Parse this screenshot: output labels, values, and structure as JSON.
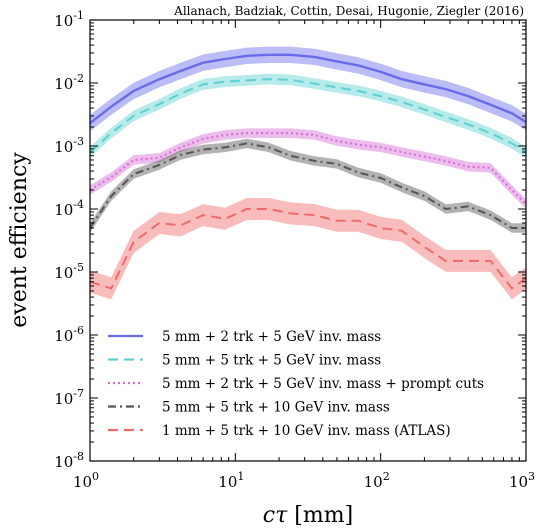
{
  "chart_data": {
    "type": "line",
    "credit": "Allanach, Badziak, Cottin, Desai, Hugonie, Ziegler (2016)",
    "xlabel": "cτ [mm]",
    "ylabel": "event efficiency",
    "xscale": "log",
    "yscale": "log",
    "xlim": [
      1,
      1000
    ],
    "ylim": [
      1e-08,
      0.1
    ],
    "x_tick_labels": [
      "10^0",
      "10^1",
      "10^2",
      "10^3"
    ],
    "y_tick_labels": [
      "10^-8",
      "10^-7",
      "10^-6",
      "10^-5",
      "10^-4",
      "10^-3",
      "10^-2",
      "10^-1"
    ],
    "grid": false,
    "legend_position": "lower-left",
    "x": [
      1,
      1.4,
      2,
      3,
      4.2,
      6,
      8.5,
      12,
      17,
      24,
      35,
      50,
      70,
      100,
      140,
      200,
      280,
      400,
      570,
      800,
      1000
    ],
    "series": [
      {
        "name": "5 mm + 2 trk + 5 GeV inv. mass",
        "color": "#6b6bea",
        "style": "solid",
        "values": [
          0.0023,
          0.0042,
          0.0075,
          0.0115,
          0.0155,
          0.021,
          0.024,
          0.027,
          0.028,
          0.028,
          0.026,
          0.022,
          0.019,
          0.015,
          0.0115,
          0.0095,
          0.008,
          0.0062,
          0.0045,
          0.0033,
          0.0024
        ],
        "band": [
          0.0023,
          0.0042,
          0.0075,
          0.0115,
          0.0155,
          0.021,
          0.024,
          0.027,
          0.028,
          0.028,
          0.026,
          0.022,
          0.019,
          0.015,
          0.0115,
          0.0095,
          0.008,
          0.0062,
          0.0045,
          0.0033,
          0.0024
        ]
      },
      {
        "name": "5 mm + 5 trk + 5 GeV inv. mass",
        "color": "#5fd0d0",
        "style": "dashed",
        "values": [
          0.0008,
          0.0016,
          0.003,
          0.0046,
          0.0068,
          0.0095,
          0.0105,
          0.011,
          0.0115,
          0.0112,
          0.0098,
          0.0085,
          0.0075,
          0.0062,
          0.005,
          0.0038,
          0.0029,
          0.0022,
          0.0016,
          0.0011,
          0.0008
        ],
        "band": [
          0.0008,
          0.0016,
          0.003,
          0.0046,
          0.0068,
          0.0095,
          0.0105,
          0.011,
          0.0115,
          0.0112,
          0.0098,
          0.0085,
          0.0075,
          0.0062,
          0.005,
          0.0038,
          0.0029,
          0.0022,
          0.0016,
          0.0011,
          0.0008
        ]
      },
      {
        "name": "5 mm + 2 trk + 5 GeV inv. mass + prompt cuts",
        "color": "#d46ad4",
        "style": "dotted",
        "values": [
          0.0002,
          0.00032,
          0.0006,
          0.00065,
          0.00095,
          0.0013,
          0.0015,
          0.0016,
          0.0016,
          0.0016,
          0.0015,
          0.0012,
          0.00105,
          0.00095,
          0.0008,
          0.00068,
          0.00058,
          0.00047,
          0.00045,
          0.0002,
          0.00012
        ],
        "band": [
          0.0002,
          0.00032,
          0.0006,
          0.00065,
          0.00095,
          0.0013,
          0.0015,
          0.0016,
          0.0016,
          0.0016,
          0.0015,
          0.0012,
          0.00105,
          0.00095,
          0.0008,
          0.00068,
          0.00058,
          0.00047,
          0.00045,
          0.0002,
          0.00012
        ]
      },
      {
        "name": "5 mm + 5 trk + 10 GeV inv. mass",
        "color": "#555555",
        "style": "dashdot",
        "values": [
          5e-05,
          0.00016,
          0.00036,
          0.0005,
          0.00072,
          0.00088,
          0.00095,
          0.0011,
          0.00095,
          0.0007,
          0.00058,
          0.00052,
          0.00038,
          0.00031,
          0.00022,
          0.00016,
          0.0001,
          0.00011,
          8e-05,
          5e-05,
          5e-05
        ],
        "band": [
          5e-05,
          0.00016,
          0.00036,
          0.0005,
          0.00072,
          0.00088,
          0.00095,
          0.0011,
          0.00095,
          0.0007,
          0.00058,
          0.00052,
          0.00038,
          0.00031,
          0.00022,
          0.00016,
          0.0001,
          0.00011,
          8e-05,
          5e-05,
          5e-05
        ]
      },
      {
        "name": "1 mm + 5 trk + 10 GeV inv. mass (ATLAS)",
        "color": "#f06a6a",
        "style": "dashed",
        "values": [
          7e-06,
          5.5e-06,
          3e-05,
          6e-05,
          5.5e-05,
          8e-05,
          7e-05,
          0.0001,
          0.0001,
          8.5e-05,
          8e-05,
          6.5e-05,
          6.5e-05,
          5e-05,
          4.5e-05,
          2.5e-05,
          1.5e-05,
          1.5e-05,
          1.5e-05,
          5.5e-06,
          8e-06
        ],
        "band": [
          7e-06,
          5.5e-06,
          3e-05,
          6e-05,
          5.5e-05,
          8e-05,
          7e-05,
          0.0001,
          0.0001,
          8.5e-05,
          8e-05,
          6.5e-05,
          6.5e-05,
          5e-05,
          4.5e-05,
          2.5e-05,
          1.5e-05,
          1.5e-05,
          1.5e-05,
          5.5e-06,
          8e-06
        ]
      }
    ]
  }
}
